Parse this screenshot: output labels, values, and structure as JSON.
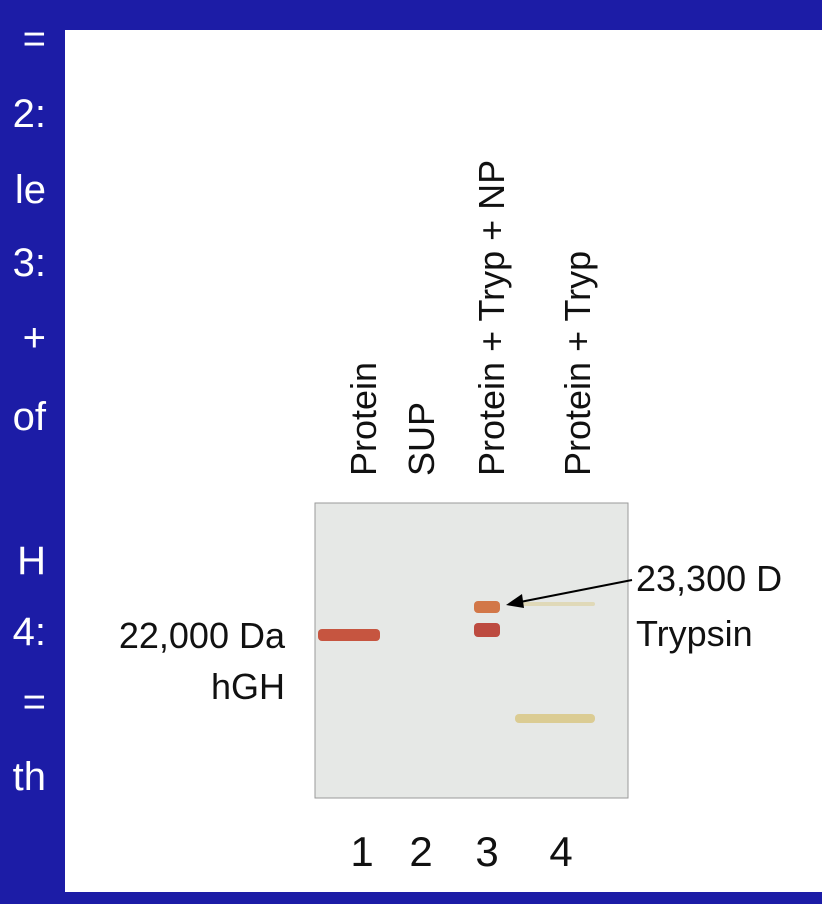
{
  "left_text": [
    "=",
    "2:",
    "le",
    "3:",
    "+",
    "of",
    "H",
    "4:",
    "=",
    "th"
  ],
  "lanes": {
    "labels": [
      "Protein",
      "SUP",
      "Protein + Tryp + NP",
      "Protein + Tryp"
    ],
    "numbers": [
      "1",
      "2",
      "3",
      "4"
    ]
  },
  "left_marker": {
    "size": "22,000 Da",
    "name": "hGH"
  },
  "right_marker": {
    "size": "23,300 D",
    "name": "Trypsin"
  }
}
